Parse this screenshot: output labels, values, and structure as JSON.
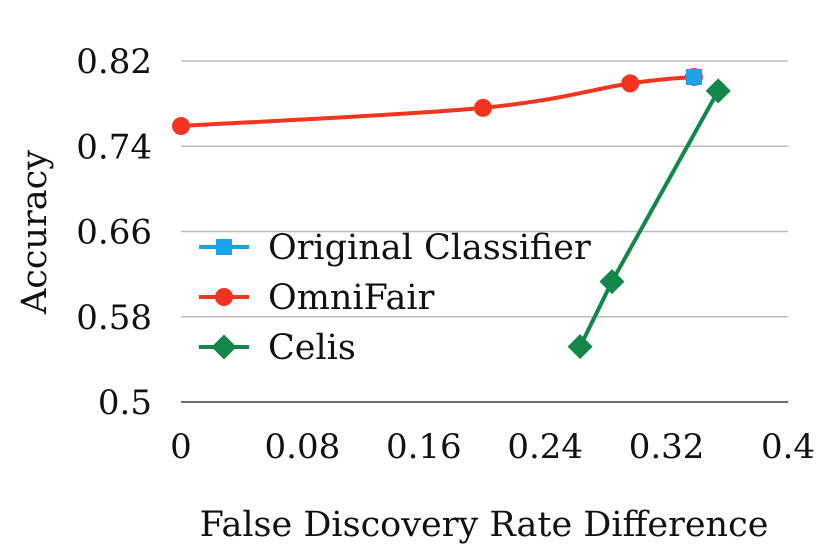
{
  "chart_data": {
    "type": "line",
    "title": "",
    "xlabel": "False Discovery Rate Difference",
    "ylabel": "Accuracy",
    "xlim": [
      0,
      0.4
    ],
    "ylim": [
      0.5,
      0.82
    ],
    "xticks": [
      "0",
      "0.08",
      "0.16",
      "0.24",
      "0.32",
      "0.4"
    ],
    "yticks": [
      "0.5",
      "0.58",
      "0.66",
      "0.74",
      "0.82"
    ],
    "grid": "horizontal",
    "legend_position": "center-left",
    "series": [
      {
        "name": "Original Classifier",
        "marker": "square",
        "color": "#1aa3e8",
        "points": [
          {
            "x": 0.338,
            "y": 0.805
          }
        ]
      },
      {
        "name": "OmniFair",
        "marker": "circle",
        "color": "#f5341f",
        "points": [
          {
            "x": 0.0,
            "y": 0.759
          },
          {
            "x": 0.199,
            "y": 0.776
          },
          {
            "x": 0.296,
            "y": 0.799
          },
          {
            "x": 0.338,
            "y": 0.805
          }
        ]
      },
      {
        "name": "Celis",
        "marker": "diamond",
        "color": "#13864a",
        "points": [
          {
            "x": 0.263,
            "y": 0.552
          },
          {
            "x": 0.284,
            "y": 0.613
          },
          {
            "x": 0.354,
            "y": 0.792
          }
        ]
      }
    ]
  }
}
